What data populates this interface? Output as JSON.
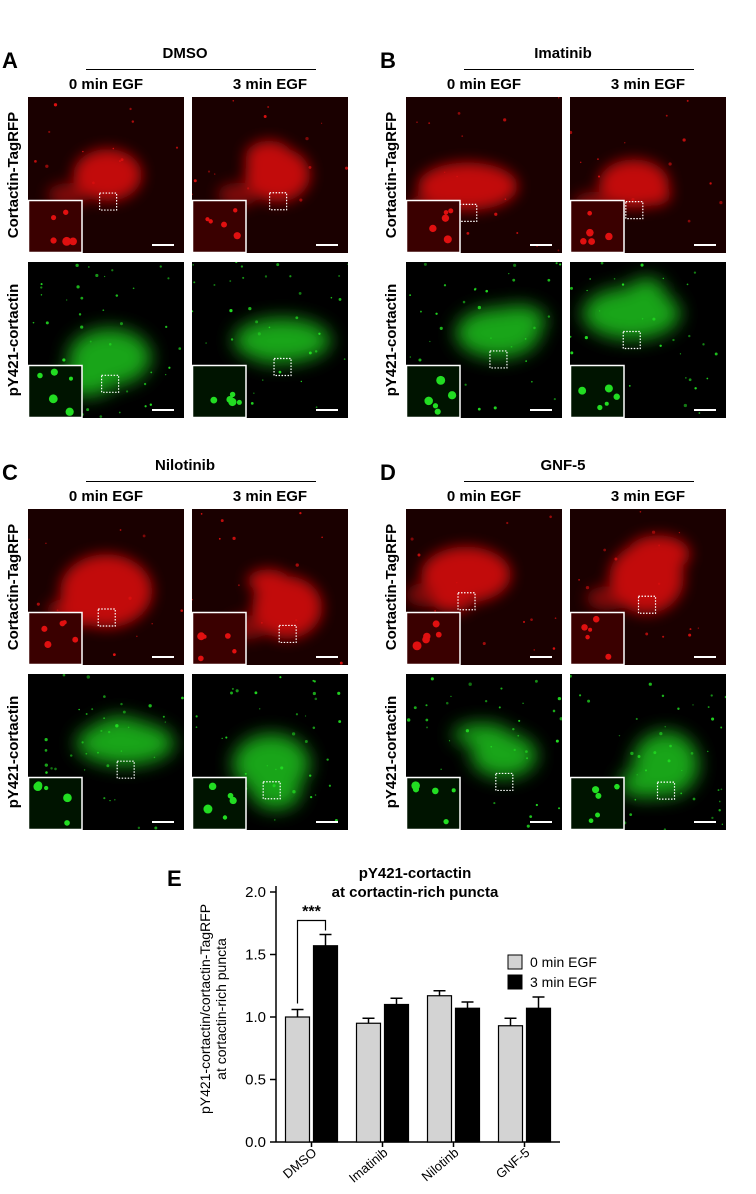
{
  "colors": {
    "red_channel": "#e01010",
    "green_channel": "#22dd22",
    "bar_0min": "#d3d3d3",
    "bar_3min": "#000000"
  },
  "panels": [
    {
      "letter": "A",
      "treatment": "DMSO",
      "col_labels": [
        "0 min EGF",
        "3 min EGF"
      ],
      "row_labels": [
        "Cortactin-TagRFP",
        "pY421-cortactin"
      ]
    },
    {
      "letter": "B",
      "treatment": "Imatinib",
      "col_labels": [
        "0 min EGF",
        "3 min EGF"
      ],
      "row_labels": [
        "Cortactin-TagRFP",
        "pY421-cortactin"
      ]
    },
    {
      "letter": "C",
      "treatment": "Nilotinib",
      "col_labels": [
        "0 min EGF",
        "3 min EGF"
      ],
      "row_labels": [
        "Cortactin-TagRFP",
        "pY421-cortactin"
      ]
    },
    {
      "letter": "D",
      "treatment": "GNF-5",
      "col_labels": [
        "0 min EGF",
        "3 min EGF"
      ],
      "row_labels": [
        "Cortactin-TagRFP",
        "pY421-cortactin"
      ]
    }
  ],
  "panel_e": {
    "letter": "E"
  },
  "chart_data": {
    "type": "bar",
    "title": "pY421-cortactin\nat cortactin-rich puncta",
    "ylabel": "pY421-cortactin/cortactin-TagRFP\nat cortactin-rich puncta",
    "xlabel": "",
    "categories": [
      "DMSO",
      "Imatinib",
      "Nilotinb",
      "GNF-5"
    ],
    "series": [
      {
        "name": "0 min EGF",
        "values": [
          1.0,
          0.95,
          1.17,
          0.93
        ],
        "errors": [
          0.06,
          0.04,
          0.04,
          0.06
        ]
      },
      {
        "name": "3 min EGF",
        "values": [
          1.57,
          1.1,
          1.07,
          1.07
        ],
        "errors": [
          0.09,
          0.05,
          0.05,
          0.09
        ]
      }
    ],
    "ylim": [
      0,
      2.0
    ],
    "yticks": [
      "0.0",
      "0.5",
      "1.0",
      "1.5",
      "2.0"
    ],
    "annotations": [
      {
        "text": "***",
        "between": "DMSO"
      }
    ],
    "legend_position": "top-right",
    "grid": false
  }
}
